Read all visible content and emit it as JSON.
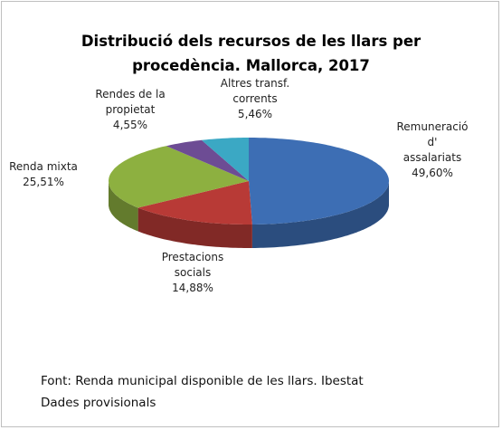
{
  "chart_data": {
    "type": "pie",
    "title": "Distribució dels  recursos de les llars per\nprocedència. Mallorca, 2017",
    "categories": [
      "Remuneració\nd' assalariats",
      "Prestacions\nsocials",
      "Renda mixta",
      "Rendes de la\npropietat",
      "Altres transf.\ncorrents"
    ],
    "values": [
      49.6,
      14.88,
      25.51,
      4.55,
      5.46
    ],
    "value_labels": [
      "49,60%",
      "14,88%",
      "25,51%",
      "4,55%",
      "5,46%"
    ],
    "colors": [
      "#3d6eb4",
      "#b83a36",
      "#8db040",
      "#6d4c94",
      "#3ba8c4"
    ],
    "notes": [
      "Font: Renda municipal  disponible  de les llars. Ibestat",
      "Dades provisionals"
    ]
  }
}
